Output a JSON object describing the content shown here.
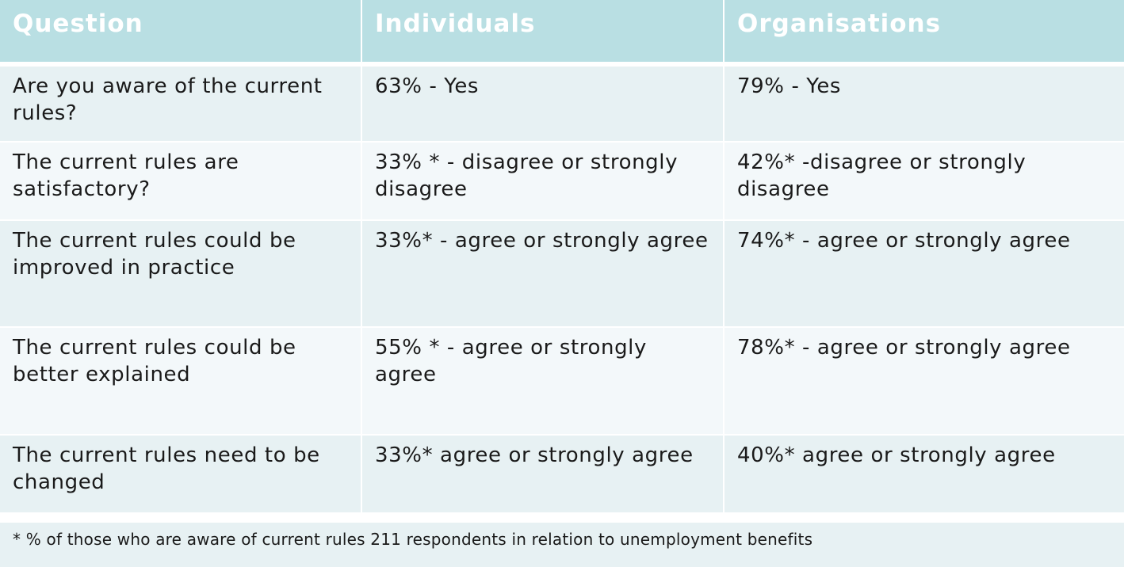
{
  "table": {
    "headers": [
      "Question",
      "Individuals",
      "Organisations"
    ],
    "rows": [
      [
        "Are you aware of the current rules?",
        "63% - Yes",
        "79% - Yes"
      ],
      [
        "The current rules are satisfactory?",
        "33% * - disagree or strongly disagree",
        "42%* -disagree or strongly disagree"
      ],
      [
        "The current rules could be improved in practice",
        "33%* - agree or strongly agree",
        "74%* - agree or strongly agree"
      ],
      [
        "The current rules could be better explained",
        "55% * - agree or strongly agree",
        "78%* - agree or strongly agree"
      ],
      [
        "The current rules need to be changed",
        "33%* agree or strongly agree",
        "40%* agree or strongly agree"
      ]
    ]
  },
  "footnote": "* % of those who are aware of current rules 211 respondents in relation to unemployment benefits",
  "colors": {
    "header_bg": "#b9dfe3",
    "header_text": "#ffffff",
    "row_odd_bg": "#e7f1f3",
    "row_even_bg": "#f3f8fa",
    "body_text": "#1a1a1a"
  }
}
